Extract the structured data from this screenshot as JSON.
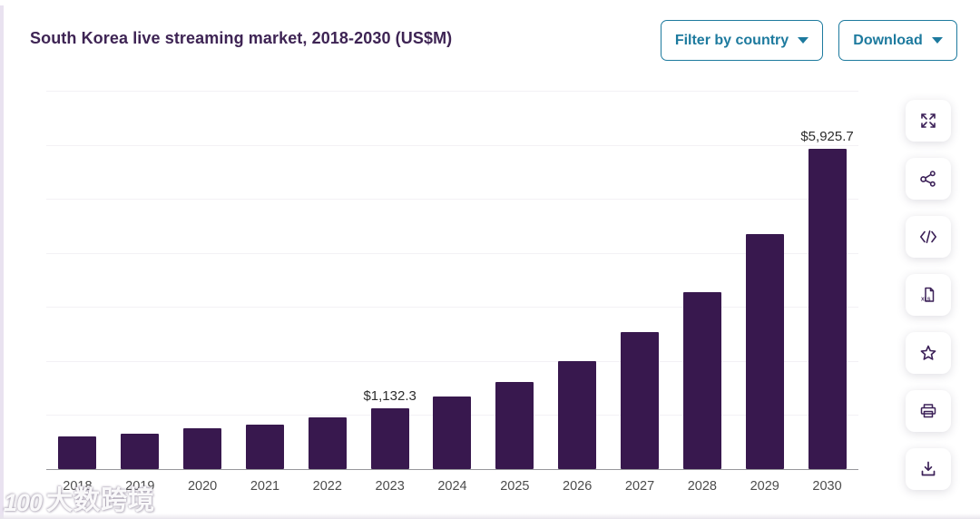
{
  "header": {
    "title": "South Korea live streaming market, 2018-2030 (US$M)",
    "filter_button_label": "Filter by country",
    "download_button_label": "Download"
  },
  "toolbar": {
    "xls_badge": "XLS",
    "icons": [
      "expand-icon",
      "share-icon",
      "embed-code-icon",
      "xls-file-icon",
      "favorite-star-icon",
      "print-icon",
      "download-image-icon"
    ]
  },
  "chart_data": {
    "type": "bar",
    "title": "South Korea live streaming market, 2018-2030 (US$M)",
    "unit": "US$M",
    "categories": [
      "2018",
      "2019",
      "2020",
      "2021",
      "2022",
      "2023",
      "2024",
      "2025",
      "2026",
      "2027",
      "2028",
      "2029",
      "2030"
    ],
    "values": [
      610,
      660,
      760,
      830,
      960,
      1132.3,
      1340,
      1620,
      2000,
      2530,
      3280,
      4340,
      5925.7
    ],
    "value_labels": [
      "",
      "",
      "",
      "",
      "",
      "$1,132.3",
      "",
      "",
      "",
      "",
      "",
      "",
      "$5,925.7"
    ],
    "ylim": [
      0,
      7000
    ],
    "gridline_interval": 1000,
    "grid": true,
    "legend": false,
    "bar_color": "#38184e"
  },
  "watermark": {
    "logo_text": "100",
    "brand_text": "大数跨境"
  },
  "colors": {
    "accent_teal": "#1d7a9e",
    "title_purple": "#3e2454",
    "bar_purple": "#38184e",
    "icon_purple": "#3c2158",
    "axis_line": "#97979c",
    "gridline": "#f3f1f5",
    "tick_label": "#4c4c4c",
    "data_label": "#2d2d2d"
  }
}
